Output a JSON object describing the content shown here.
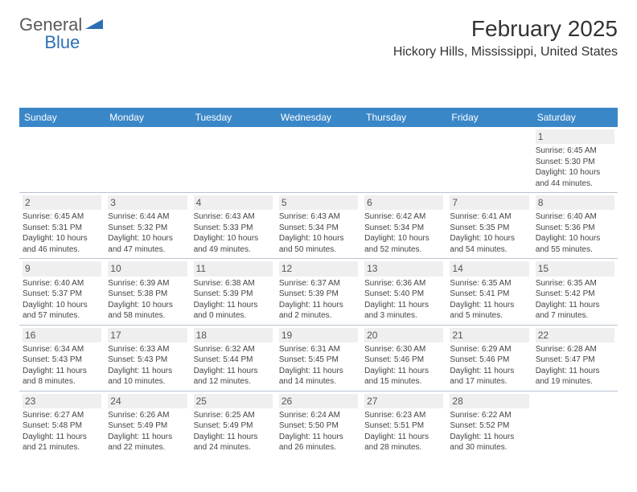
{
  "logo": {
    "text_general": "General",
    "text_blue": "Blue",
    "triangle_color": "#2c6fb3"
  },
  "header": {
    "month_title": "February 2025",
    "location": "Hickory Hills, Mississippi, United States"
  },
  "colors": {
    "header_bg": "#3a87c8",
    "header_text": "#ffffff",
    "day_divider": "#b8c4d0",
    "daynum_bg": "#efefef",
    "body_text": "#444444",
    "page_bg": "#ffffff"
  },
  "weekdays": [
    "Sunday",
    "Monday",
    "Tuesday",
    "Wednesday",
    "Thursday",
    "Friday",
    "Saturday"
  ],
  "layout": {
    "columns": 7,
    "rows": 5,
    "first_weekday_index": 6,
    "days_in_month": 28
  },
  "days": [
    {
      "n": 1,
      "sunrise": "6:45 AM",
      "sunset": "5:30 PM",
      "daylight": "10 hours and 44 minutes."
    },
    {
      "n": 2,
      "sunrise": "6:45 AM",
      "sunset": "5:31 PM",
      "daylight": "10 hours and 46 minutes."
    },
    {
      "n": 3,
      "sunrise": "6:44 AM",
      "sunset": "5:32 PM",
      "daylight": "10 hours and 47 minutes."
    },
    {
      "n": 4,
      "sunrise": "6:43 AM",
      "sunset": "5:33 PM",
      "daylight": "10 hours and 49 minutes."
    },
    {
      "n": 5,
      "sunrise": "6:43 AM",
      "sunset": "5:34 PM",
      "daylight": "10 hours and 50 minutes."
    },
    {
      "n": 6,
      "sunrise": "6:42 AM",
      "sunset": "5:34 PM",
      "daylight": "10 hours and 52 minutes."
    },
    {
      "n": 7,
      "sunrise": "6:41 AM",
      "sunset": "5:35 PM",
      "daylight": "10 hours and 54 minutes."
    },
    {
      "n": 8,
      "sunrise": "6:40 AM",
      "sunset": "5:36 PM",
      "daylight": "10 hours and 55 minutes."
    },
    {
      "n": 9,
      "sunrise": "6:40 AM",
      "sunset": "5:37 PM",
      "daylight": "10 hours and 57 minutes."
    },
    {
      "n": 10,
      "sunrise": "6:39 AM",
      "sunset": "5:38 PM",
      "daylight": "10 hours and 58 minutes."
    },
    {
      "n": 11,
      "sunrise": "6:38 AM",
      "sunset": "5:39 PM",
      "daylight": "11 hours and 0 minutes."
    },
    {
      "n": 12,
      "sunrise": "6:37 AM",
      "sunset": "5:39 PM",
      "daylight": "11 hours and 2 minutes."
    },
    {
      "n": 13,
      "sunrise": "6:36 AM",
      "sunset": "5:40 PM",
      "daylight": "11 hours and 3 minutes."
    },
    {
      "n": 14,
      "sunrise": "6:35 AM",
      "sunset": "5:41 PM",
      "daylight": "11 hours and 5 minutes."
    },
    {
      "n": 15,
      "sunrise": "6:35 AM",
      "sunset": "5:42 PM",
      "daylight": "11 hours and 7 minutes."
    },
    {
      "n": 16,
      "sunrise": "6:34 AM",
      "sunset": "5:43 PM",
      "daylight": "11 hours and 8 minutes."
    },
    {
      "n": 17,
      "sunrise": "6:33 AM",
      "sunset": "5:43 PM",
      "daylight": "11 hours and 10 minutes."
    },
    {
      "n": 18,
      "sunrise": "6:32 AM",
      "sunset": "5:44 PM",
      "daylight": "11 hours and 12 minutes."
    },
    {
      "n": 19,
      "sunrise": "6:31 AM",
      "sunset": "5:45 PM",
      "daylight": "11 hours and 14 minutes."
    },
    {
      "n": 20,
      "sunrise": "6:30 AM",
      "sunset": "5:46 PM",
      "daylight": "11 hours and 15 minutes."
    },
    {
      "n": 21,
      "sunrise": "6:29 AM",
      "sunset": "5:46 PM",
      "daylight": "11 hours and 17 minutes."
    },
    {
      "n": 22,
      "sunrise": "6:28 AM",
      "sunset": "5:47 PM",
      "daylight": "11 hours and 19 minutes."
    },
    {
      "n": 23,
      "sunrise": "6:27 AM",
      "sunset": "5:48 PM",
      "daylight": "11 hours and 21 minutes."
    },
    {
      "n": 24,
      "sunrise": "6:26 AM",
      "sunset": "5:49 PM",
      "daylight": "11 hours and 22 minutes."
    },
    {
      "n": 25,
      "sunrise": "6:25 AM",
      "sunset": "5:49 PM",
      "daylight": "11 hours and 24 minutes."
    },
    {
      "n": 26,
      "sunrise": "6:24 AM",
      "sunset": "5:50 PM",
      "daylight": "11 hours and 26 minutes."
    },
    {
      "n": 27,
      "sunrise": "6:23 AM",
      "sunset": "5:51 PM",
      "daylight": "11 hours and 28 minutes."
    },
    {
      "n": 28,
      "sunrise": "6:22 AM",
      "sunset": "5:52 PM",
      "daylight": "11 hours and 30 minutes."
    }
  ],
  "labels": {
    "sunrise": "Sunrise:",
    "sunset": "Sunset:",
    "daylight": "Daylight:"
  }
}
